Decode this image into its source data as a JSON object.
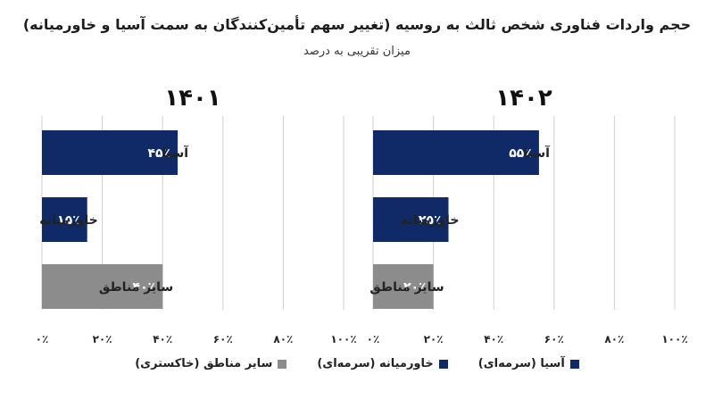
{
  "title": "حجم واردات فناوری شخص ثالث به روسیه (تغییر سهم تأمین‌کنندگان به سمت آسیا و خاورمیانه)",
  "subtitle": "میزان تقریبی به درصد",
  "colors": {
    "asia": "#0f2a66",
    "middle_east": "#0f2a66",
    "other": "#8c8c8c",
    "grid": "#cfcfcf",
    "label_text": "#ffffff"
  },
  "chart_data": [
    {
      "type": "bar",
      "title": "۱۴۰۱",
      "categories": [
        "آسیا",
        "خاورمیانه",
        "سایر مناطق"
      ],
      "values": [
        45,
        15,
        40
      ],
      "value_labels": [
        "۴۵٪",
        "۱۵٪",
        "۴۰٪"
      ],
      "xlim": [
        0,
        100
      ],
      "xticks": [
        "۰٪",
        "۲۰٪",
        "۴۰٪",
        "۶۰٪",
        "۸۰٪",
        "۱۰۰٪"
      ],
      "grid": true
    },
    {
      "type": "bar",
      "title": "۱۴۰۲",
      "categories": [
        "آسیا",
        "خاورمیانه",
        "سایر مناطق"
      ],
      "values": [
        55,
        25,
        20
      ],
      "value_labels": [
        "۵۵٪",
        "۲۵٪",
        "۲۰٪"
      ],
      "xlim": [
        0,
        100
      ],
      "xticks": [
        "۰٪",
        "۲۰٪",
        "۴۰٪",
        "۶۰٪",
        "۸۰٪",
        "۱۰۰٪"
      ],
      "grid": true
    }
  ],
  "legend": {
    "placement": "bottom",
    "items": [
      {
        "label": "آسیا (سرمه‌ای)",
        "color": "#0f2a66"
      },
      {
        "label": "خاورمیانه (سرمه‌ای)",
        "color": "#0f2a66"
      },
      {
        "label": "سایر مناطق (خاکستری)",
        "color": "#8c8c8c"
      }
    ]
  }
}
